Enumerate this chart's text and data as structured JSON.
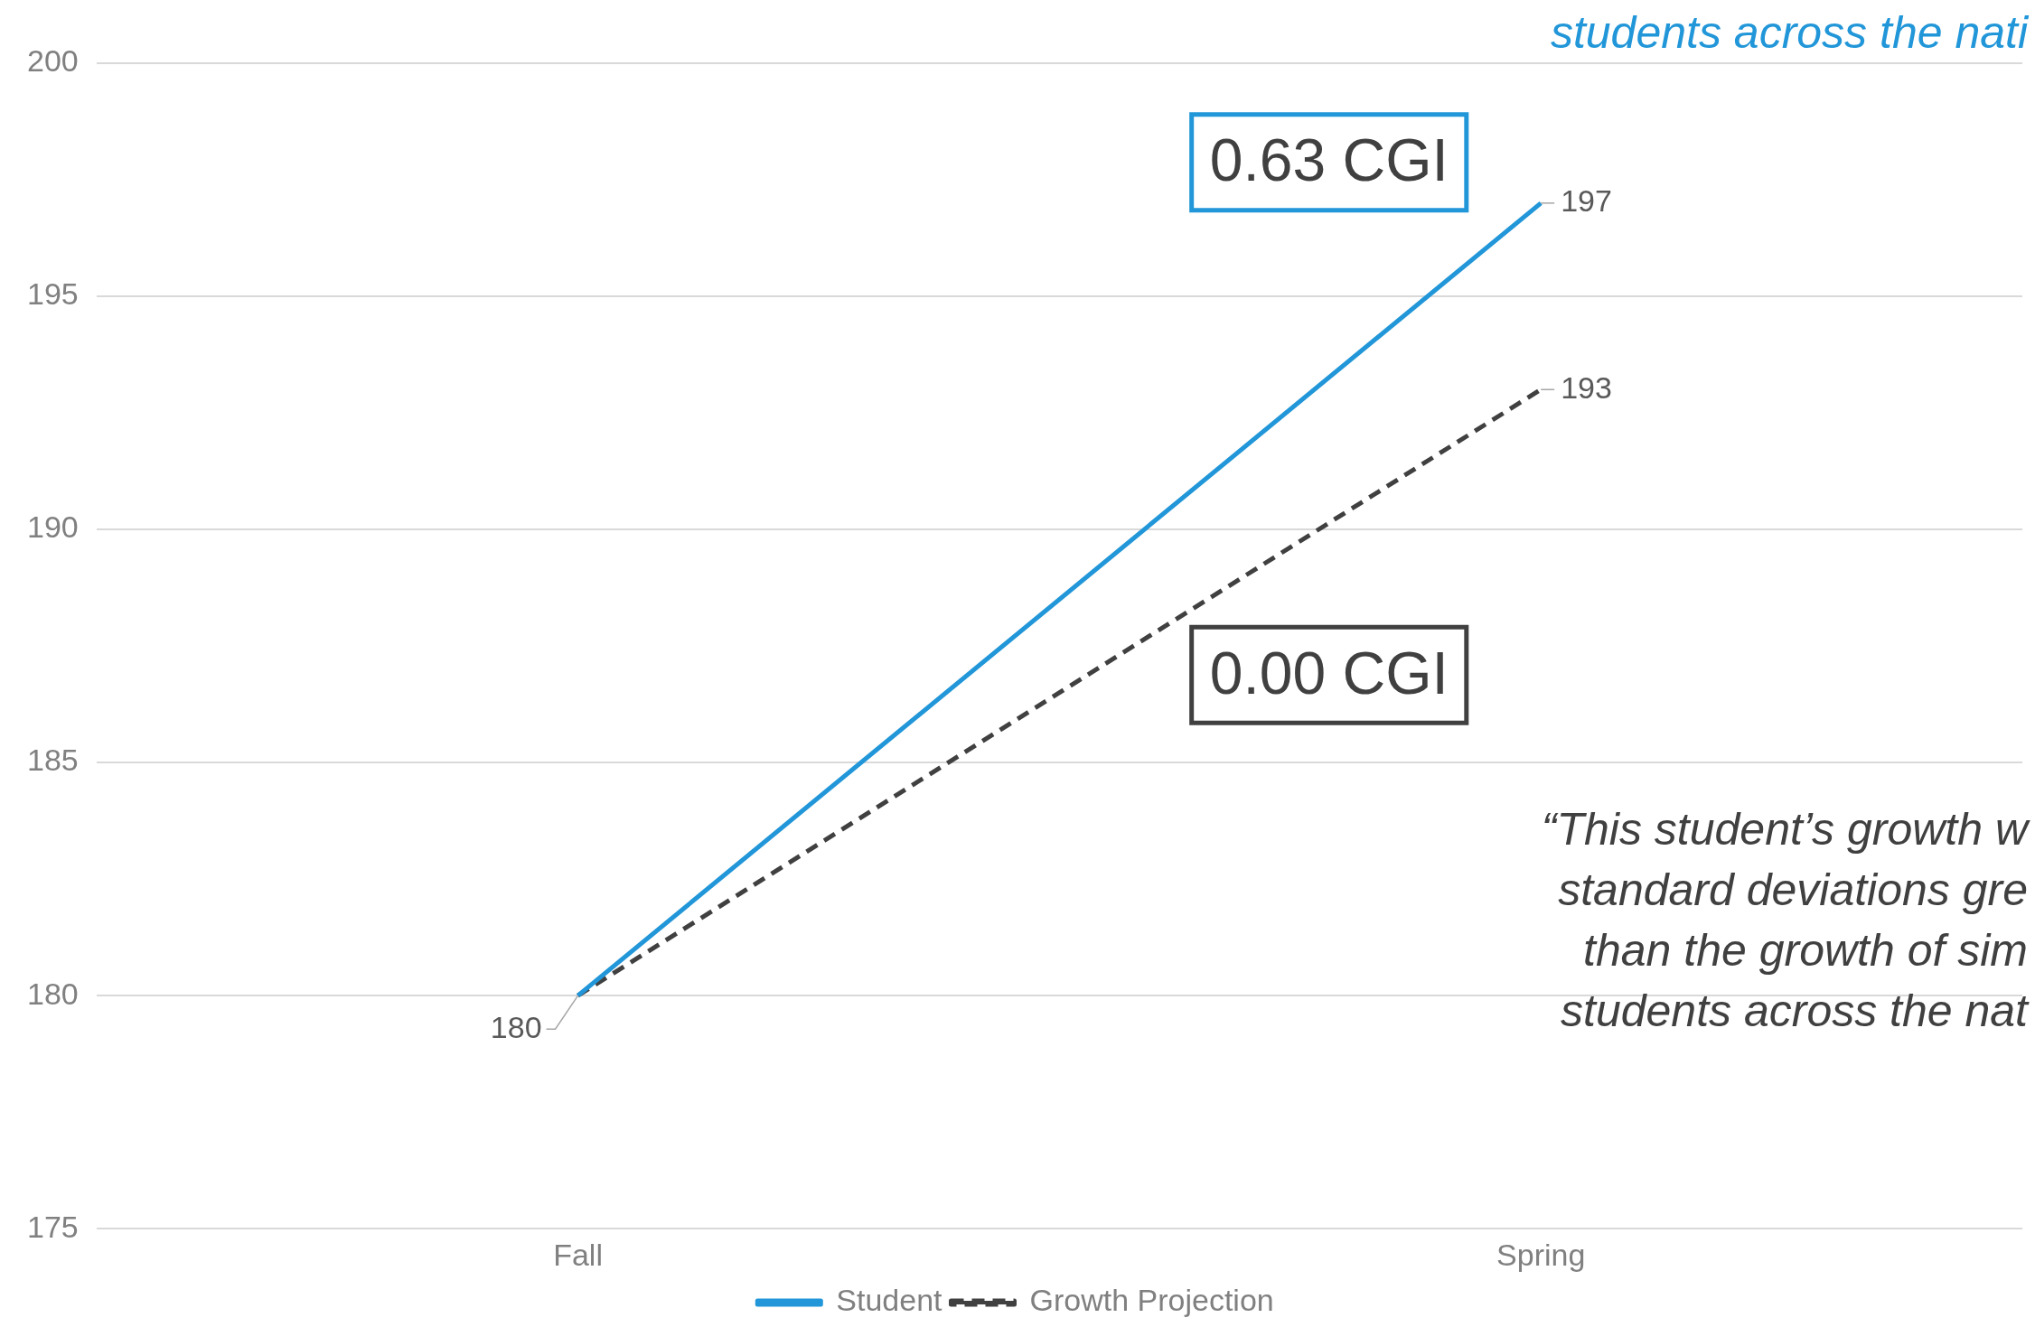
{
  "chart_data": {
    "type": "line",
    "categories": [
      "Fall",
      "Spring"
    ],
    "series": [
      {
        "name": "Student",
        "color": "#2196d8",
        "values": [
          180,
          197
        ],
        "value_labels": [
          "180",
          "197"
        ],
        "line_style": "solid"
      },
      {
        "name": "Growth Projection",
        "color": "#404040",
        "values": [
          180,
          193
        ],
        "value_labels": [
          null,
          "193"
        ],
        "line_style": "dashed"
      }
    ],
    "ylim": [
      175,
      200
    ],
    "yticks": [
      175,
      180,
      185,
      190,
      195,
      200
    ],
    "grid": "y",
    "legend": "bottom",
    "marker": "none",
    "annotations": [
      "students across the nati",
      "0.63 CGI",
      "0.00 CGI",
      "“This student’s growth w\nstandard deviations gre\nthan the growth of sim\nstudents across the nat"
    ]
  }
}
